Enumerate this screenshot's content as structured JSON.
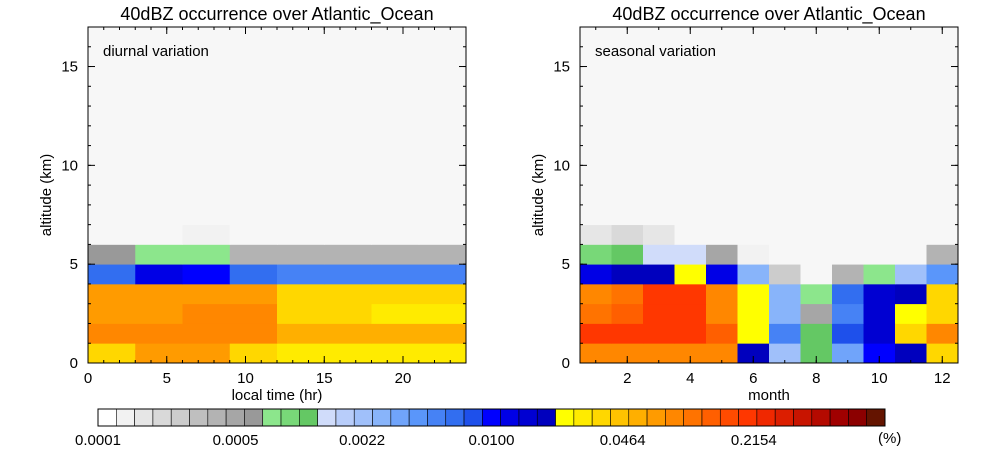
{
  "colors": {
    "background_cell": "#f7f7f7",
    "palette": [
      "#ffffff",
      "#f2f2f2",
      "#e6e6e6",
      "#d9d9d9",
      "#cccccc",
      "#bfbfbf",
      "#b3b3b3",
      "#a6a6a6",
      "#999999",
      "#8ce68c",
      "#78d878",
      "#64c864",
      "#d0dcfa",
      "#b8cdfa",
      "#a0c0fa",
      "#88b4fa",
      "#70a4fa",
      "#5a96fa",
      "#4682f5",
      "#326ef0",
      "#1e50eb",
      "#0000ff",
      "#0000e6",
      "#0000d2",
      "#0000be",
      "#ffff00",
      "#ffeb00",
      "#ffd700",
      "#ffc300",
      "#ffaf00",
      "#ff9b00",
      "#ff8700",
      "#ff7300",
      "#ff5f00",
      "#ff4b00",
      "#ff3700",
      "#f02800",
      "#dc1e00",
      "#c81400",
      "#b40a00",
      "#a00000",
      "#8c0000",
      "#641400"
    ]
  },
  "chart_data": [
    {
      "type": "heatmap",
      "title": "40dBZ occurrence over Atlantic_Ocean",
      "annotation": "diurnal variation",
      "xlabel": "local time (hr)",
      "ylabel": "altitude (km)",
      "xlim": [
        0,
        24
      ],
      "ylim": [
        0,
        17
      ],
      "xticks": [
        0,
        5,
        10,
        15,
        20
      ],
      "yticks": [
        0,
        5,
        10,
        15
      ],
      "x_edges": [
        0,
        3,
        6,
        9,
        12,
        15,
        18,
        21,
        24
      ],
      "y_edges": [
        0,
        1,
        2,
        3,
        4,
        5,
        6,
        7,
        17
      ],
      "cell_colors": [
        [
          "#ffd700",
          "#ff9b00",
          "#ff9b00",
          "#ffd700",
          "#ffeb00",
          "#ffeb00",
          "#ffeb00",
          "#ffeb00"
        ],
        [
          "#ff8700",
          "#ff8700",
          "#ff8700",
          "#ff8700",
          "#ffaf00",
          "#ffaf00",
          "#ffaf00",
          "#ffaf00"
        ],
        [
          "#ff9b00",
          "#ff9b00",
          "#ff8700",
          "#ff8700",
          "#ffd700",
          "#ffd700",
          "#ffeb00",
          "#ffeb00"
        ],
        [
          "#ff9b00",
          "#ff9b00",
          "#ff9b00",
          "#ff9b00",
          "#ffd700",
          "#ffd700",
          "#ffd700",
          "#ffd700"
        ],
        [
          "#326ef0",
          "#0000e6",
          "#0000ff",
          "#326ef0",
          "#4682f5",
          "#4682f5",
          "#4682f5",
          "#4682f5"
        ],
        [
          "#999999",
          "#8ce68c",
          "#8ce68c",
          "#b3b3b3",
          "#b3b3b3",
          "#b3b3b3",
          "#b3b3b3",
          "#b3b3b3"
        ],
        [
          "#f7f7f7",
          "#f7f7f7",
          "#f2f2f2",
          "#f7f7f7",
          "#f7f7f7",
          "#f7f7f7",
          "#f7f7f7",
          "#f7f7f7"
        ],
        [
          "#f7f7f7",
          "#f7f7f7",
          "#f7f7f7",
          "#f7f7f7",
          "#f7f7f7",
          "#f7f7f7",
          "#f7f7f7",
          "#f7f7f7"
        ]
      ]
    },
    {
      "type": "heatmap",
      "title": "40dBZ occurrence over Atlantic_Ocean",
      "annotation": "seasonal variation",
      "xlabel": "month",
      "ylabel": "altitude (km)",
      "xlim": [
        0.5,
        12.5
      ],
      "ylim": [
        0,
        17
      ],
      "xticks": [
        2,
        4,
        6,
        8,
        10,
        12
      ],
      "yticks": [
        0,
        5,
        10,
        15
      ],
      "x_edges": [
        0.5,
        1.5,
        2.5,
        3.5,
        4.5,
        5.5,
        6.5,
        7.5,
        8.5,
        9.5,
        10.5,
        11.5,
        12.5
      ],
      "y_edges": [
        0,
        1,
        2,
        3,
        4,
        5,
        6,
        7,
        17
      ],
      "cell_colors": [
        [
          "#ff8700",
          "#ff8700",
          "#ff8700",
          "#ff8700",
          "#ff8700",
          "#0000be",
          "#a0c0fa",
          "#64c864",
          "#70a4fa",
          "#0000ff",
          "#0000be",
          "#ffd700"
        ],
        [
          "#ff3700",
          "#ff3700",
          "#ff3700",
          "#ff3700",
          "#ff5f00",
          "#ffff00",
          "#4682f5",
          "#64c864",
          "#1e50eb",
          "#0000d2",
          "#ffd700",
          "#ff8700"
        ],
        [
          "#ff7300",
          "#ff5f00",
          "#ff3700",
          "#ff3700",
          "#ff8700",
          "#ffff00",
          "#88b4fa",
          "#a6a6a6",
          "#4682f5",
          "#0000d2",
          "#ffff00",
          "#ffd700"
        ],
        [
          "#ff8700",
          "#ff7300",
          "#ff3700",
          "#ff3700",
          "#ff8700",
          "#ffff00",
          "#88b4fa",
          "#8ce68c",
          "#326ef0",
          "#0000d2",
          "#0000be",
          "#ffd700"
        ],
        [
          "#0000e6",
          "#0000be",
          "#0000be",
          "#ffff00",
          "#0000e6",
          "#88b4fa",
          "#cccccc",
          "#f7f7f7",
          "#b3b3b3",
          "#8ce68c",
          "#a0c0fa",
          "#5a96fa"
        ],
        [
          "#78d878",
          "#64c864",
          "#d0dcfa",
          "#d0dcfa",
          "#a6a6a6",
          "#f2f2f2",
          "#f7f7f7",
          "#f7f7f7",
          "#f7f7f7",
          "#f7f7f7",
          "#f7f7f7",
          "#b3b3b3"
        ],
        [
          "#e6e6e6",
          "#d9d9d9",
          "#e6e6e6",
          "#f7f7f7",
          "#f7f7f7",
          "#f7f7f7",
          "#f7f7f7",
          "#f7f7f7",
          "#f7f7f7",
          "#f7f7f7",
          "#f7f7f7",
          "#f7f7f7"
        ],
        [
          "#f7f7f7",
          "#f7f7f7",
          "#f7f7f7",
          "#f7f7f7",
          "#f7f7f7",
          "#f7f7f7",
          "#f7f7f7",
          "#f7f7f7",
          "#f7f7f7",
          "#f7f7f7",
          "#f7f7f7",
          "#f7f7f7"
        ]
      ]
    }
  ],
  "colorbar": {
    "tick_labels": [
      "0.0001",
      "0.0005",
      "0.0022",
      "0.0100",
      "0.0464",
      "0.2154"
    ],
    "tick_values": [
      0.0001,
      0.0005,
      0.0022,
      0.01,
      0.0464,
      0.2154
    ],
    "range": [
      0.0001,
      1.0
    ],
    "scale": "log",
    "unit": "(%)"
  }
}
